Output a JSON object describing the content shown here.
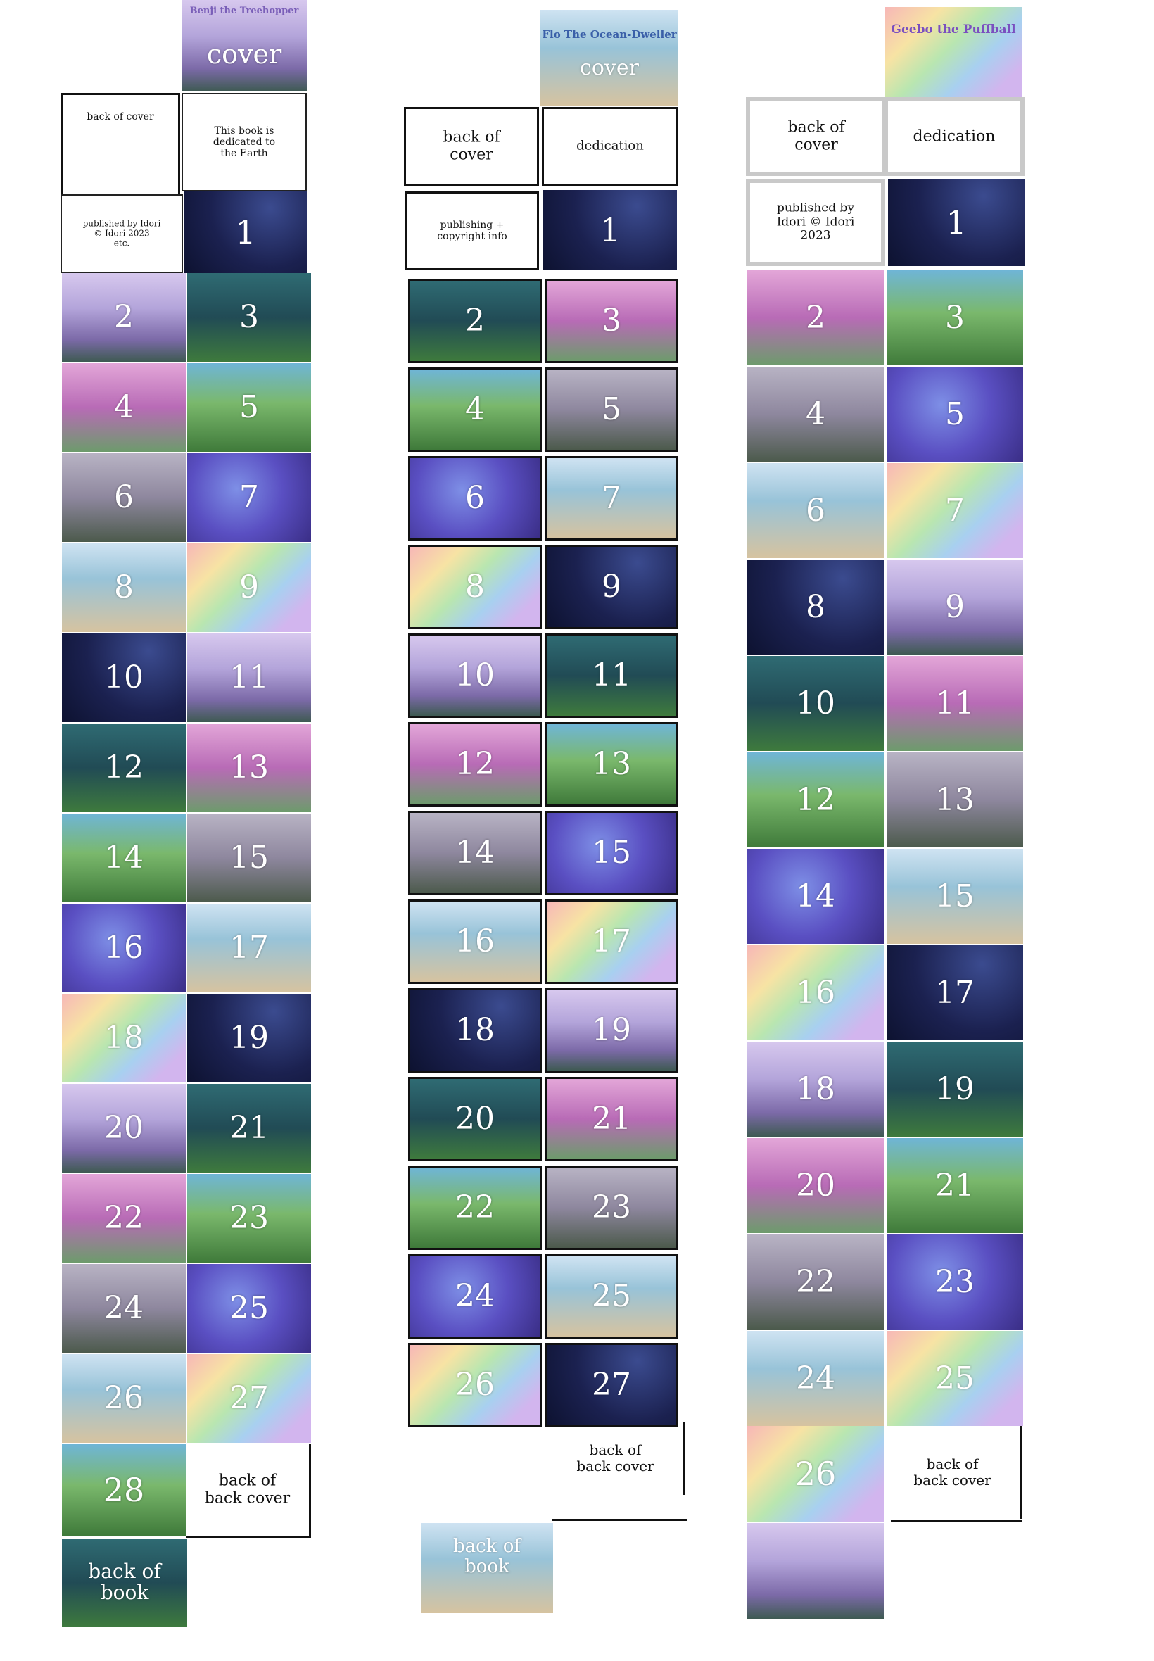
{
  "columns": [
    {
      "book": "Benji the Treehopper",
      "cover_label": "cover",
      "back_of_cover": "back of cover",
      "dedication": "This book is\ndedicated to\nthe Earth",
      "publishing": "published by Idori\n© Idori 2023\netc.",
      "page_one": "1",
      "pairs": [
        [
          "2",
          "3"
        ],
        [
          "4",
          "5"
        ],
        [
          "6",
          "7"
        ],
        [
          "8",
          "9"
        ],
        [
          "10",
          "11"
        ],
        [
          "12",
          "13"
        ],
        [
          "14",
          "15"
        ],
        [
          "16",
          "17"
        ],
        [
          "18",
          "19"
        ],
        [
          "20",
          "21"
        ],
        [
          "22",
          "23"
        ],
        [
          "24",
          "25"
        ],
        [
          "26",
          "27"
        ]
      ],
      "last_page": "28",
      "back_of_back_cover": "back of\nback cover",
      "back_of_book": "back of\nbook"
    },
    {
      "book": "Flo The Ocean-Dweller",
      "cover_label": "cover",
      "back_of_cover": "back of\ncover",
      "dedication": "dedication",
      "publishing": "publishing +\ncopyright info",
      "page_one": "1",
      "pairs": [
        [
          "2",
          "3"
        ],
        [
          "4",
          "5"
        ],
        [
          "6",
          "7"
        ],
        [
          "8",
          "9"
        ],
        [
          "10",
          "11"
        ],
        [
          "12",
          "13"
        ],
        [
          "14",
          "15"
        ],
        [
          "16",
          "17"
        ],
        [
          "18",
          "19"
        ],
        [
          "20",
          "21"
        ],
        [
          "22",
          "23"
        ],
        [
          "24",
          "25"
        ],
        [
          "26",
          "27"
        ]
      ],
      "back_of_back_cover": "back of\nback cover",
      "back_of_book": "back of\nbook"
    },
    {
      "book": "Geebo the Puffball",
      "back_of_cover": "back of\ncover",
      "dedication": "dedication",
      "publishing": "published by\nIdori © Idori\n2023",
      "page_one": "1",
      "pairs": [
        [
          "2",
          "3"
        ],
        [
          "4",
          "5"
        ],
        [
          "6",
          "7"
        ],
        [
          "8",
          "9"
        ],
        [
          "10",
          "11"
        ],
        [
          "12",
          "13"
        ],
        [
          "14",
          "15"
        ],
        [
          "16",
          "17"
        ],
        [
          "18",
          "19"
        ],
        [
          "20",
          "21"
        ],
        [
          "22",
          "23"
        ],
        [
          "24",
          "25"
        ]
      ],
      "last_page": "26",
      "back_of_back_cover": "back of\nback cover"
    }
  ]
}
